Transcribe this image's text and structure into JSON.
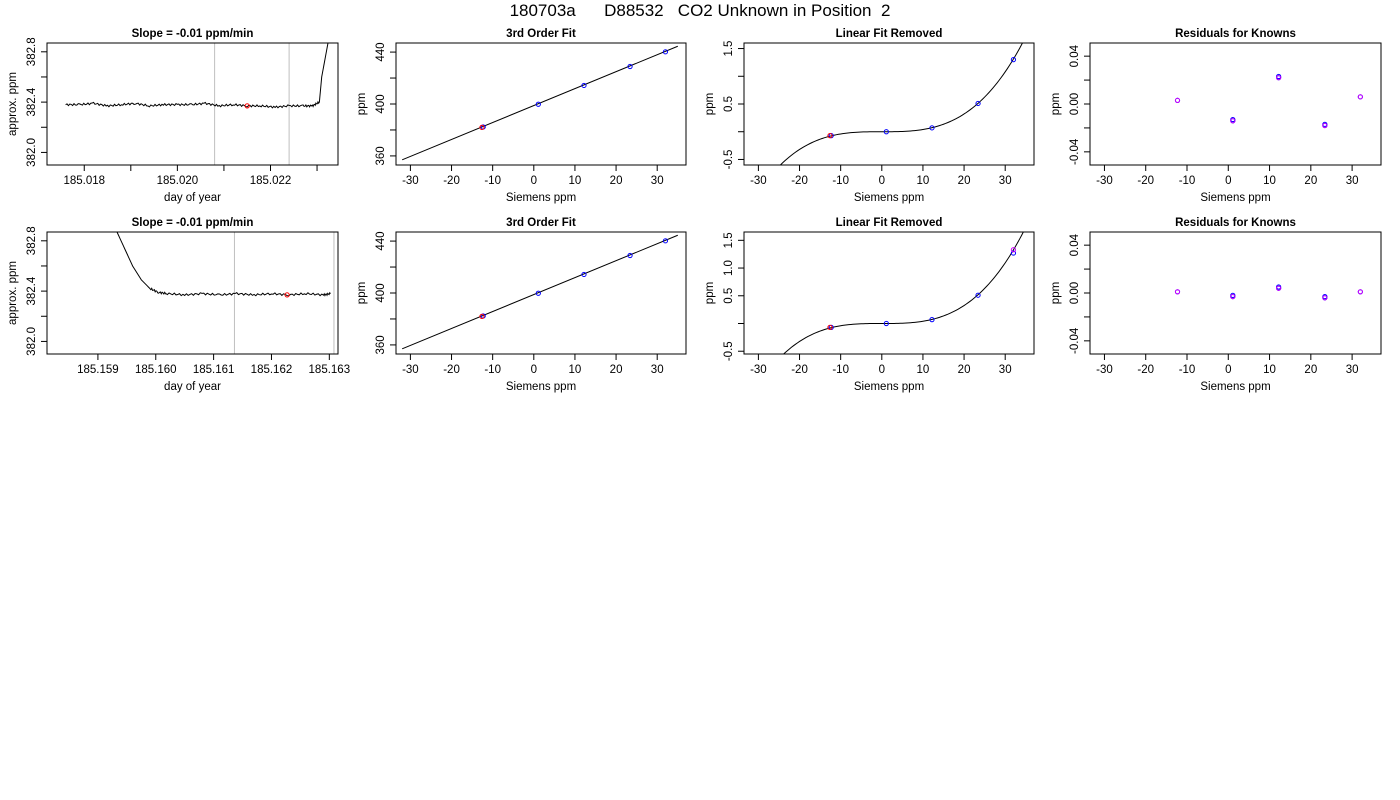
{
  "main_title": "180703a      D88532   CO2 Unknown in Position  2",
  "chart_data": [
    {
      "type": "line",
      "title": "Slope =  -0.01  ppm/min",
      "xlabel": "day of year",
      "ylabel": "approx. ppm",
      "xlim": [
        185.0172,
        185.02345
      ],
      "ylim": [
        381.9,
        382.87
      ],
      "xticks": [
        185.017,
        185.018,
        185.019,
        185.02,
        185.021,
        185.022,
        185.023
      ],
      "xtick_labels": [
        "",
        "185.018",
        "",
        "185.020",
        "",
        "185.022",
        ""
      ],
      "yticks": [
        382.0,
        382.2,
        382.4,
        382.6,
        382.8
      ],
      "ytick_labels": [
        "382.0",
        "",
        "382.4",
        "",
        "382.8"
      ],
      "vlines": [
        185.0208,
        185.0224
      ],
      "trace": {
        "x": [
          185.0176,
          185.0179,
          185.0182,
          185.0185,
          185.0188,
          185.0191,
          185.0194,
          185.0197,
          185.02,
          185.0203,
          185.0206,
          185.0209,
          185.0212,
          185.0215,
          185.0218,
          185.0221,
          185.0224,
          185.0227,
          185.0229,
          185.02305,
          185.0231,
          185.02325
        ],
        "y": [
          382.38,
          382.38,
          382.39,
          382.37,
          382.38,
          382.39,
          382.37,
          382.38,
          382.38,
          382.38,
          382.39,
          382.37,
          382.38,
          382.37,
          382.37,
          382.36,
          382.37,
          382.37,
          382.37,
          382.4,
          382.6,
          382.9
        ]
      },
      "points": [
        {
          "x": 185.0215,
          "y": 382.37,
          "color": "#ff0000"
        }
      ]
    },
    {
      "type": "scatter",
      "title": "3rd Order Fit",
      "xlabel": "Siemens ppm",
      "ylabel": "ppm",
      "xlim": [
        -33.5,
        37
      ],
      "ylim": [
        353,
        447
      ],
      "xticks": [
        -30,
        -20,
        -10,
        0,
        10,
        20,
        30
      ],
      "xtick_labels": [
        "-30",
        "-20",
        "-10",
        "0",
        "10",
        "20",
        "30"
      ],
      "yticks": [
        360,
        380,
        400,
        420,
        440
      ],
      "ytick_labels": [
        "360",
        "",
        "400",
        "",
        "440"
      ],
      "fit_curve": {
        "type": "linear",
        "x": [
          -32,
          35
        ],
        "y": [
          357,
          444.5
        ]
      },
      "series": [
        {
          "color": "#0000ff",
          "x": [
            -12.3,
            1.1,
            12.2,
            23.4,
            32.0
          ],
          "y": [
            382.3,
            399.8,
            414.3,
            428.9,
            440.2
          ]
        },
        {
          "color": "#ff0000",
          "x": [
            -12.6
          ],
          "y": [
            382.0
          ]
        }
      ]
    },
    {
      "type": "scatter",
      "title": "Linear Fit Removed",
      "xlabel": "Siemens ppm",
      "ylabel": "ppm",
      "xlim": [
        -33.5,
        37
      ],
      "ylim": [
        -0.6,
        1.6
      ],
      "xticks": [
        -30,
        -20,
        -10,
        0,
        10,
        20,
        30
      ],
      "xtick_labels": [
        "-30",
        "-20",
        "-10",
        "0",
        "10",
        "20",
        "30"
      ],
      "yticks": [
        -0.5,
        0.0,
        0.5,
        1.0,
        1.5
      ],
      "ytick_labels": [
        "-0.5",
        "",
        "0.5",
        "",
        "1.5"
      ],
      "fit_curve": {
        "type": "cubic",
        "a": 0.0,
        "c3": 4e-05,
        "xmin": -32,
        "xmax": 34.5
      },
      "series": [
        {
          "color": "#0000ff",
          "x": [
            -12.3,
            1.1,
            12.2,
            23.4,
            32.0
          ],
          "y": [
            -0.07,
            0.0,
            0.07,
            0.51,
            1.3
          ]
        },
        {
          "color": "#ff0000",
          "x": [
            -12.6
          ],
          "y": [
            -0.07
          ]
        }
      ]
    },
    {
      "type": "scatter",
      "title": "Residuals for Knowns",
      "xlabel": "Siemens ppm",
      "ylabel": "ppm",
      "xlim": [
        -33.5,
        37
      ],
      "ylim": [
        -0.051,
        0.051
      ],
      "xticks": [
        -30,
        -20,
        -10,
        0,
        10,
        20,
        30
      ],
      "xtick_labels": [
        "-30",
        "-20",
        "-10",
        "0",
        "10",
        "20",
        "30"
      ],
      "yticks": [
        -0.04,
        -0.02,
        0.0,
        0.02,
        0.04
      ],
      "ytick_labels": [
        "-0.04",
        "",
        "0.00",
        "",
        "0.04"
      ],
      "series": [
        {
          "color": "#0000ff",
          "x": [
            -12.3,
            1.1,
            1.1,
            12.2,
            12.2,
            23.4,
            23.4,
            32.0
          ],
          "y": [
            0.003,
            -0.013,
            -0.014,
            0.023,
            0.022,
            -0.017,
            -0.018,
            0.006
          ]
        },
        {
          "color": "#cc00ff",
          "x": [
            -12.3,
            1.1,
            12.2,
            23.4,
            32.0
          ],
          "y": [
            0.003,
            -0.014,
            0.022,
            -0.018,
            0.006
          ]
        }
      ]
    },
    {
      "type": "line",
      "title": "Slope =  -0.01  ppm/min",
      "xlabel": "day of year",
      "ylabel": "approx. ppm",
      "xlim": [
        185.15812,
        185.16315
      ],
      "ylim": [
        381.9,
        382.87
      ],
      "xticks": [
        185.159,
        185.16,
        185.161,
        185.162,
        185.163
      ],
      "xtick_labels": [
        "185.159",
        "185.160",
        "185.161",
        "185.162",
        "185.163"
      ],
      "yticks": [
        382.0,
        382.2,
        382.4,
        382.6,
        382.8
      ],
      "ytick_labels": [
        "382.0",
        "",
        "382.4",
        "",
        "382.8"
      ],
      "vlines": [
        185.16136,
        185.16308
      ],
      "trace": {
        "x": [
          185.1593,
          185.15945,
          185.1596,
          185.15975,
          185.1599,
          185.16005,
          185.1602,
          185.1605,
          185.1608,
          185.1611,
          185.1614,
          185.1617,
          185.162,
          185.1623,
          185.1626,
          185.1629,
          185.16302
        ],
        "y": [
          382.9,
          382.75,
          382.6,
          382.49,
          382.42,
          382.39,
          382.38,
          382.37,
          382.38,
          382.37,
          382.38,
          382.37,
          382.38,
          382.37,
          382.38,
          382.37,
          382.38
        ]
      },
      "points": [
        {
          "x": 185.16227,
          "y": 382.37,
          "color": "#ff0000"
        }
      ]
    },
    {
      "type": "scatter",
      "title": "3rd Order Fit",
      "xlabel": "Siemens ppm",
      "ylabel": "ppm",
      "xlim": [
        -33.5,
        37
      ],
      "ylim": [
        353,
        447
      ],
      "xticks": [
        -30,
        -20,
        -10,
        0,
        10,
        20,
        30
      ],
      "xtick_labels": [
        "-30",
        "-20",
        "-10",
        "0",
        "10",
        "20",
        "30"
      ],
      "yticks": [
        360,
        380,
        400,
        420,
        440
      ],
      "ytick_labels": [
        "360",
        "",
        "400",
        "",
        "440"
      ],
      "fit_curve": {
        "type": "linear",
        "x": [
          -32,
          35
        ],
        "y": [
          357,
          444.5
        ]
      },
      "series": [
        {
          "color": "#0000ff",
          "x": [
            -12.3,
            1.1,
            12.2,
            23.4,
            32.0
          ],
          "y": [
            382.3,
            399.8,
            414.3,
            428.9,
            440.2
          ]
        },
        {
          "color": "#ff0000",
          "x": [
            -12.6
          ],
          "y": [
            382.0
          ]
        }
      ]
    },
    {
      "type": "scatter",
      "title": "Linear Fit Removed",
      "xlabel": "Siemens ppm",
      "ylabel": "ppm",
      "xlim": [
        -33.5,
        37
      ],
      "ylim": [
        -0.55,
        1.65
      ],
      "xticks": [
        -30,
        -20,
        -10,
        0,
        10,
        20,
        30
      ],
      "xtick_labels": [
        "-30",
        "-20",
        "-10",
        "0",
        "10",
        "20",
        "30"
      ],
      "yticks": [
        -0.5,
        0.0,
        0.5,
        1.0,
        1.5
      ],
      "ytick_labels": [
        "-0.5",
        "",
        "0.5",
        "1.0",
        "1.5"
      ],
      "fit_curve": {
        "type": "cubic",
        "a": 0.0,
        "c3": 4.05e-05,
        "xmin": -32,
        "xmax": 34.5
      },
      "series": [
        {
          "color": "#0000ff",
          "x": [
            -12.3,
            1.1,
            12.2,
            23.4,
            32.0
          ],
          "y": [
            -0.07,
            0.0,
            0.07,
            0.51,
            1.27
          ]
        },
        {
          "color": "#cc00ff",
          "x": [
            32.0
          ],
          "y": [
            1.33
          ]
        },
        {
          "color": "#ff0000",
          "x": [
            -12.6
          ],
          "y": [
            -0.07
          ]
        }
      ]
    },
    {
      "type": "scatter",
      "title": "Residuals for Knowns",
      "xlabel": "Siemens ppm",
      "ylabel": "ppm",
      "xlim": [
        -33.5,
        37
      ],
      "ylim": [
        -0.051,
        0.051
      ],
      "xticks": [
        -30,
        -20,
        -10,
        0,
        10,
        20,
        30
      ],
      "xtick_labels": [
        "-30",
        "-20",
        "-10",
        "0",
        "10",
        "20",
        "30"
      ],
      "yticks": [
        -0.04,
        -0.02,
        0.0,
        0.02,
        0.04
      ],
      "ytick_labels": [
        "-0.04",
        "",
        "0.00",
        "",
        "0.04"
      ],
      "series": [
        {
          "color": "#0000ff",
          "x": [
            -12.3,
            1.1,
            1.1,
            12.2,
            12.2,
            23.4,
            23.4,
            32.0
          ],
          "y": [
            0.001,
            -0.002,
            -0.003,
            0.005,
            0.004,
            -0.003,
            -0.004,
            0.001
          ]
        },
        {
          "color": "#cc00ff",
          "x": [
            -12.3,
            1.1,
            12.2,
            23.4,
            32.0
          ],
          "y": [
            0.001,
            -0.003,
            0.004,
            -0.004,
            0.001
          ]
        }
      ]
    }
  ]
}
